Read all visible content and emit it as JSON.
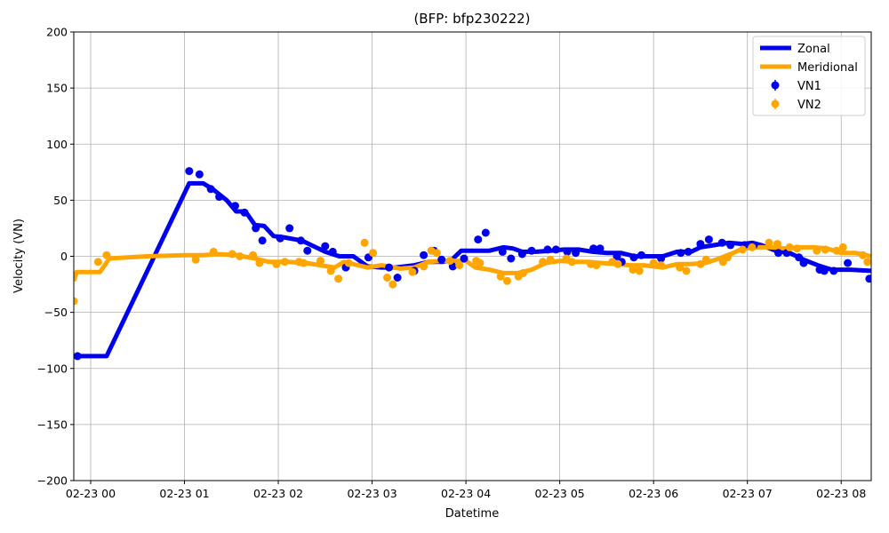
{
  "chart_data": {
    "type": "line",
    "title": "(BFP: bfp230222)",
    "xlabel": "Datetime",
    "ylabel": "Velocity (VN)",
    "ylim": [
      -200,
      200
    ],
    "xlim_hours": [
      -0.18,
      8.32
    ],
    "grid": true,
    "legend_position": "top-right",
    "x_ticks": [
      {
        "hour": 0,
        "label": "02-23 00"
      },
      {
        "hour": 1,
        "label": "02-23 01"
      },
      {
        "hour": 2,
        "label": "02-23 02"
      },
      {
        "hour": 3,
        "label": "02-23 03"
      },
      {
        "hour": 4,
        "label": "02-23 04"
      },
      {
        "hour": 5,
        "label": "02-23 05"
      },
      {
        "hour": 6,
        "label": "02-23 06"
      },
      {
        "hour": 7,
        "label": "02-23 07"
      },
      {
        "hour": 8,
        "label": "02-23 08"
      }
    ],
    "y_ticks": [
      200,
      150,
      100,
      50,
      0,
      -50,
      -100,
      -150,
      -200
    ],
    "y_tick_labels": [
      "200",
      "150",
      "100",
      "50",
      "0",
      "−50",
      "−100",
      "−150",
      "−200"
    ],
    "series": [
      {
        "name": "Zonal",
        "kind": "line",
        "color": "#0000ee",
        "points": [
          [
            -0.16,
            -89
          ],
          [
            0.17,
            -89
          ],
          [
            1.05,
            65
          ],
          [
            1.2,
            65
          ],
          [
            1.3,
            60
          ],
          [
            1.45,
            50
          ],
          [
            1.55,
            40
          ],
          [
            1.65,
            40
          ],
          [
            1.75,
            28
          ],
          [
            1.85,
            27
          ],
          [
            1.95,
            18
          ],
          [
            2.05,
            17
          ],
          [
            2.25,
            14
          ],
          [
            2.35,
            10
          ],
          [
            2.5,
            4
          ],
          [
            2.65,
            0
          ],
          [
            2.8,
            0
          ],
          [
            2.95,
            -9
          ],
          [
            3.1,
            -10
          ],
          [
            3.25,
            -10
          ],
          [
            3.45,
            -8
          ],
          [
            3.6,
            -5
          ],
          [
            3.75,
            -5
          ],
          [
            3.85,
            -3
          ],
          [
            3.95,
            5
          ],
          [
            4.1,
            5
          ],
          [
            4.25,
            5
          ],
          [
            4.4,
            8
          ],
          [
            4.5,
            7
          ],
          [
            4.6,
            4
          ],
          [
            4.75,
            4
          ],
          [
            4.9,
            5
          ],
          [
            5.05,
            6
          ],
          [
            5.2,
            6
          ],
          [
            5.35,
            4
          ],
          [
            5.5,
            3
          ],
          [
            5.65,
            3
          ],
          [
            5.8,
            0
          ],
          [
            5.95,
            0
          ],
          [
            6.1,
            0
          ],
          [
            6.25,
            4
          ],
          [
            6.4,
            4
          ],
          [
            6.5,
            8
          ],
          [
            6.65,
            10
          ],
          [
            6.8,
            12
          ],
          [
            6.95,
            11
          ],
          [
            7.05,
            12
          ],
          [
            7.15,
            10
          ],
          [
            7.3,
            5
          ],
          [
            7.45,
            3
          ],
          [
            7.6,
            -3
          ],
          [
            7.75,
            -8
          ],
          [
            7.9,
            -12
          ],
          [
            8.1,
            -12
          ],
          [
            8.32,
            -13
          ]
        ]
      },
      {
        "name": "Meridional",
        "kind": "line",
        "color": "#ffa500",
        "points": [
          [
            -0.18,
            -22
          ],
          [
            -0.15,
            -14
          ],
          [
            0.1,
            -14
          ],
          [
            0.2,
            -2
          ],
          [
            0.6,
            0
          ],
          [
            1.0,
            1
          ],
          [
            1.2,
            1
          ],
          [
            1.35,
            2
          ],
          [
            1.55,
            1
          ],
          [
            1.75,
            -2
          ],
          [
            1.9,
            -5
          ],
          [
            2.1,
            -5
          ],
          [
            2.3,
            -6
          ],
          [
            2.45,
            -8
          ],
          [
            2.6,
            -10
          ],
          [
            2.7,
            -5
          ],
          [
            2.8,
            -7
          ],
          [
            2.95,
            -10
          ],
          [
            3.1,
            -8
          ],
          [
            3.3,
            -11
          ],
          [
            3.45,
            -10
          ],
          [
            3.6,
            -5
          ],
          [
            3.75,
            -4
          ],
          [
            3.9,
            -4
          ],
          [
            4.0,
            -4
          ],
          [
            4.1,
            -10
          ],
          [
            4.25,
            -12
          ],
          [
            4.4,
            -15
          ],
          [
            4.55,
            -15
          ],
          [
            4.7,
            -12
          ],
          [
            4.85,
            -6
          ],
          [
            5.0,
            -4
          ],
          [
            5.15,
            -5
          ],
          [
            5.3,
            -5
          ],
          [
            5.45,
            -6
          ],
          [
            5.6,
            -7
          ],
          [
            5.75,
            -8
          ],
          [
            5.9,
            -8
          ],
          [
            6.1,
            -10
          ],
          [
            6.25,
            -7
          ],
          [
            6.4,
            -7
          ],
          [
            6.55,
            -6
          ],
          [
            6.7,
            -2
          ],
          [
            6.85,
            3
          ],
          [
            6.95,
            7
          ],
          [
            7.1,
            8
          ],
          [
            7.25,
            8
          ],
          [
            7.4,
            7
          ],
          [
            7.55,
            8
          ],
          [
            7.7,
            8
          ],
          [
            7.85,
            7
          ],
          [
            8.0,
            3
          ],
          [
            8.15,
            3
          ],
          [
            8.32,
            0
          ]
        ]
      },
      {
        "name": "VN1",
        "kind": "scatter",
        "color": "#0000ee",
        "points": [
          [
            -0.14,
            -89
          ],
          [
            1.05,
            76
          ],
          [
            1.16,
            73
          ],
          [
            1.28,
            60
          ],
          [
            1.37,
            53
          ],
          [
            1.54,
            45
          ],
          [
            1.64,
            39
          ],
          [
            1.76,
            25
          ],
          [
            1.83,
            14
          ],
          [
            2.02,
            16
          ],
          [
            2.12,
            25
          ],
          [
            2.24,
            14
          ],
          [
            2.31,
            5
          ],
          [
            2.5,
            9
          ],
          [
            2.58,
            4
          ],
          [
            2.72,
            -10
          ],
          [
            2.96,
            -1
          ],
          [
            3.18,
            -10
          ],
          [
            3.27,
            -19
          ],
          [
            3.45,
            -13
          ],
          [
            3.55,
            1
          ],
          [
            3.66,
            5
          ],
          [
            3.74,
            -3
          ],
          [
            3.86,
            -9
          ],
          [
            3.98,
            -2
          ],
          [
            4.13,
            15
          ],
          [
            4.21,
            21
          ],
          [
            4.39,
            4
          ],
          [
            4.48,
            -2
          ],
          [
            4.6,
            2
          ],
          [
            4.7,
            5
          ],
          [
            4.87,
            6
          ],
          [
            4.96,
            6
          ],
          [
            5.08,
            4
          ],
          [
            5.17,
            3
          ],
          [
            5.36,
            7
          ],
          [
            5.43,
            7
          ],
          [
            5.61,
            0
          ],
          [
            5.66,
            -5
          ],
          [
            5.79,
            -1
          ],
          [
            5.87,
            1
          ],
          [
            6.08,
            -2
          ],
          [
            6.29,
            3
          ],
          [
            6.37,
            4
          ],
          [
            6.5,
            11
          ],
          [
            6.59,
            15
          ],
          [
            6.73,
            12
          ],
          [
            6.82,
            10
          ],
          [
            6.97,
            10
          ],
          [
            7.07,
            10
          ],
          [
            7.33,
            3
          ],
          [
            7.42,
            3
          ],
          [
            7.55,
            -1
          ],
          [
            7.6,
            -6
          ],
          [
            7.77,
            -12
          ],
          [
            7.82,
            -13
          ],
          [
            7.92,
            -13
          ],
          [
            8.07,
            -6
          ],
          [
            8.3,
            -20
          ]
        ]
      },
      {
        "name": "VN2",
        "kind": "scatter",
        "color": "#ffa500",
        "points": [
          [
            -0.18,
            -40
          ],
          [
            0.08,
            -5
          ],
          [
            0.17,
            1
          ],
          [
            1.12,
            -3
          ],
          [
            1.31,
            4
          ],
          [
            1.51,
            2
          ],
          [
            1.59,
            0
          ],
          [
            1.73,
            1
          ],
          [
            1.8,
            -6
          ],
          [
            1.98,
            -7
          ],
          [
            2.07,
            -5
          ],
          [
            2.22,
            -5
          ],
          [
            2.27,
            -6
          ],
          [
            2.45,
            -4
          ],
          [
            2.56,
            -13
          ],
          [
            2.64,
            -20
          ],
          [
            2.75,
            -6
          ],
          [
            2.92,
            12
          ],
          [
            3.01,
            3
          ],
          [
            3.16,
            -19
          ],
          [
            3.22,
            -25
          ],
          [
            3.43,
            -14
          ],
          [
            3.55,
            -9
          ],
          [
            3.63,
            5
          ],
          [
            3.69,
            3
          ],
          [
            3.83,
            -4
          ],
          [
            3.93,
            -8
          ],
          [
            4.11,
            -4
          ],
          [
            4.15,
            -6
          ],
          [
            4.37,
            -18
          ],
          [
            4.44,
            -22
          ],
          [
            4.56,
            -18
          ],
          [
            4.61,
            -15
          ],
          [
            4.82,
            -5
          ],
          [
            4.9,
            -3
          ],
          [
            5.07,
            -2
          ],
          [
            5.13,
            -5
          ],
          [
            5.33,
            -7
          ],
          [
            5.39,
            -8
          ],
          [
            5.56,
            -5
          ],
          [
            5.62,
            -7
          ],
          [
            5.78,
            -12
          ],
          [
            5.85,
            -13
          ],
          [
            6.0,
            -6
          ],
          [
            6.08,
            -8
          ],
          [
            6.28,
            -10
          ],
          [
            6.35,
            -13
          ],
          [
            6.5,
            -7
          ],
          [
            6.56,
            -3
          ],
          [
            6.74,
            -5
          ],
          [
            6.79,
            -1
          ],
          [
            6.95,
            6
          ],
          [
            7.05,
            8
          ],
          [
            7.23,
            12
          ],
          [
            7.32,
            11
          ],
          [
            7.45,
            8
          ],
          [
            7.53,
            7
          ],
          [
            7.74,
            5
          ],
          [
            7.83,
            6
          ],
          [
            7.95,
            5
          ],
          [
            8.02,
            8
          ],
          [
            8.23,
            1
          ],
          [
            8.28,
            -5
          ]
        ]
      }
    ]
  }
}
